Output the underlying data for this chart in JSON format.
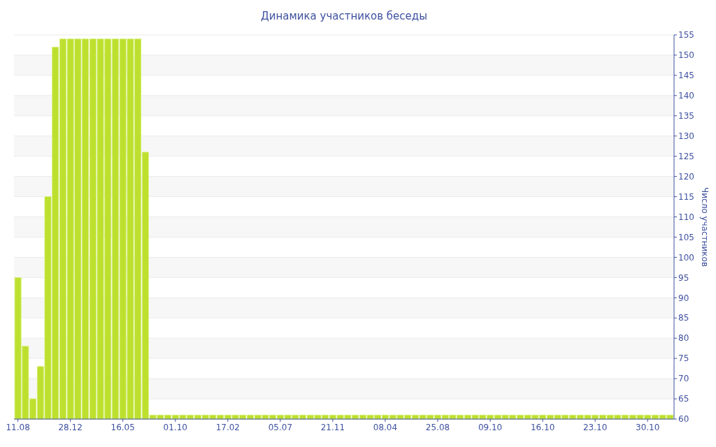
{
  "chart_data": {
    "type": "bar",
    "title": "Динамика участников беседы",
    "y2label": "Число участников",
    "categories": [
      "11.08",
      null,
      null,
      null,
      null,
      null,
      null,
      "28.12",
      null,
      null,
      null,
      null,
      null,
      null,
      "16.05",
      null,
      null,
      null,
      null,
      null,
      null,
      "01.10",
      null,
      null,
      null,
      null,
      null,
      null,
      "17.02",
      null,
      null,
      null,
      null,
      null,
      null,
      "05.07",
      null,
      null,
      null,
      null,
      null,
      null,
      "21.11",
      null,
      null,
      null,
      null,
      null,
      null,
      "08.04",
      null,
      null,
      null,
      null,
      null,
      null,
      "25.08",
      null,
      null,
      null,
      null,
      null,
      null,
      "09.10",
      null,
      null,
      null,
      null,
      null,
      null,
      "16.10",
      null,
      null,
      null,
      null,
      null,
      null,
      "23.10",
      null,
      null,
      null,
      null,
      null,
      null,
      "30.10",
      null,
      null,
      null
    ],
    "series": [
      {
        "color": "#bde02f",
        "axis": "y2",
        "values": [
          95,
          78,
          65,
          73,
          115,
          152,
          154,
          154,
          154,
          154,
          154,
          154,
          154,
          154,
          154,
          154,
          154,
          126,
          61,
          61,
          61,
          61,
          61,
          61,
          61,
          61,
          61,
          61,
          61,
          61,
          61,
          61,
          61,
          61,
          61,
          61,
          61,
          61,
          61,
          61,
          61,
          61,
          61,
          61,
          61,
          61,
          61,
          61,
          61,
          61,
          61,
          61,
          61,
          61,
          61,
          61,
          61,
          61,
          61,
          61,
          61,
          61,
          61,
          61,
          61,
          61,
          61,
          61,
          61,
          61,
          61,
          61,
          61,
          61,
          61,
          61,
          61,
          61,
          61,
          61,
          61,
          61,
          61,
          61,
          61,
          61,
          61,
          61
        ]
      }
    ],
    "y2lim": [
      60,
      155
    ],
    "y2ticks": [
      60,
      65,
      70,
      75,
      80,
      85,
      90,
      95,
      100,
      105,
      110,
      115,
      120,
      125,
      130,
      135,
      140,
      145,
      150,
      155
    ],
    "grid": "y"
  }
}
